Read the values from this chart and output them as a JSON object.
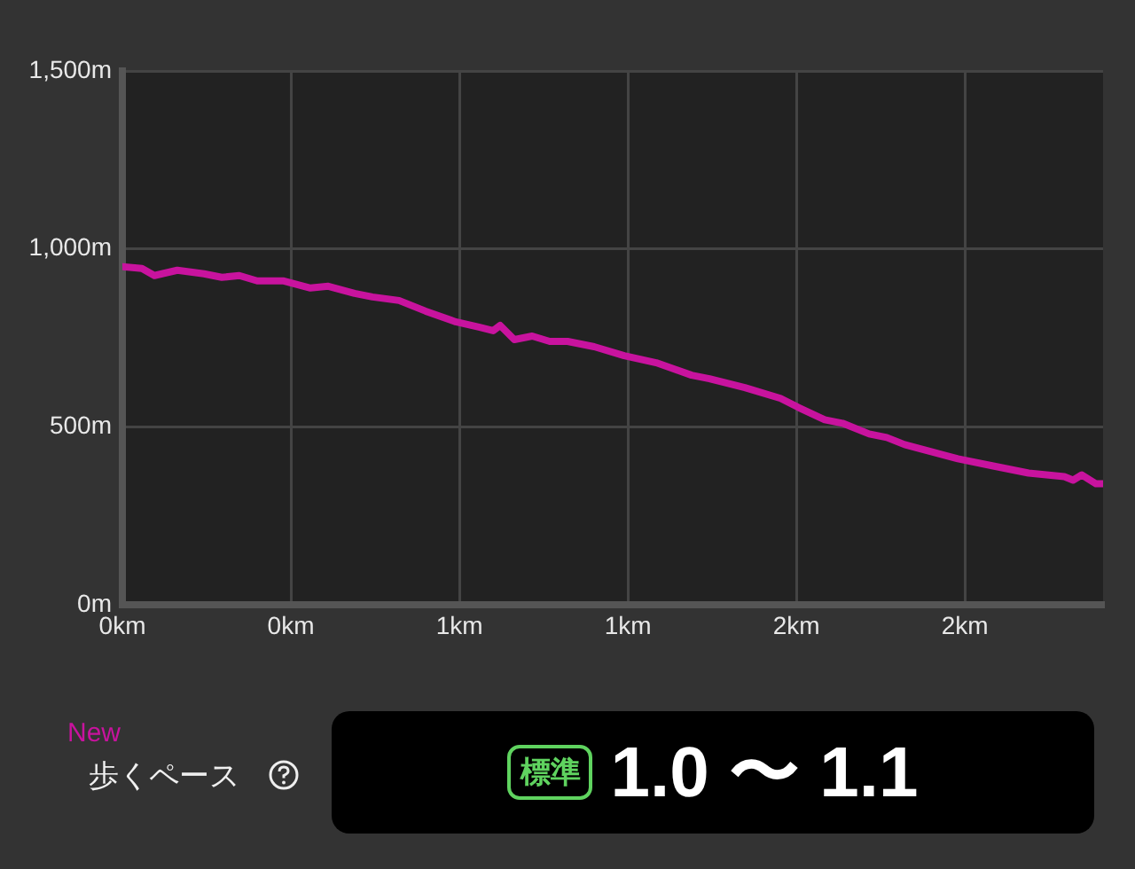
{
  "chart_data": {
    "type": "line",
    "x": [
      0,
      0.058,
      0.095,
      0.163,
      0.242,
      0.295,
      0.347,
      0.4,
      0.479,
      0.558,
      0.611,
      0.689,
      0.742,
      0.821,
      0.9,
      0.989,
      1.058,
      1.1,
      1.121,
      1.163,
      1.216,
      1.268,
      1.321,
      1.4,
      1.489,
      1.584,
      1.689,
      1.742,
      1.847,
      1.953,
      2.005,
      2.084,
      2.137,
      2.216,
      2.268,
      2.321,
      2.4,
      2.479,
      2.584,
      2.689,
      2.795,
      2.821,
      2.847,
      2.889,
      2.91
    ],
    "series": [
      {
        "color": "#c8139e",
        "values": [
          950,
          945,
          925,
          940,
          930,
          920,
          925,
          910,
          910,
          890,
          895,
          875,
          865,
          855,
          825,
          795,
          780,
          770,
          785,
          745,
          755,
          740,
          740,
          725,
          700,
          680,
          645,
          635,
          610,
          580,
          555,
          520,
          510,
          480,
          470,
          450,
          430,
          410,
          390,
          370,
          360,
          350,
          365,
          340,
          340
        ]
      }
    ],
    "xlim": [
      0,
      2.91
    ],
    "xticks": [
      {
        "value": 0,
        "label": "0km"
      },
      {
        "value": 0.5,
        "label": "0km"
      },
      {
        "value": 1,
        "label": "1km"
      },
      {
        "value": 1.5,
        "label": "1km"
      },
      {
        "value": 2,
        "label": "2km"
      },
      {
        "value": 2.5,
        "label": "2km"
      }
    ],
    "ylim": [
      0,
      1500
    ],
    "yticks": [
      {
        "value": 0,
        "label": "0m"
      },
      {
        "value": 500,
        "label": "500m"
      },
      {
        "value": 1000,
        "label": "1,000m"
      },
      {
        "value": 1500,
        "label": "1,500m"
      }
    ],
    "grid": true,
    "legend": false,
    "marker": "none",
    "line_style": "solid",
    "annotations": [
      "New",
      "歩くペース",
      "標準",
      "1.0 〜 1.1"
    ]
  }
}
